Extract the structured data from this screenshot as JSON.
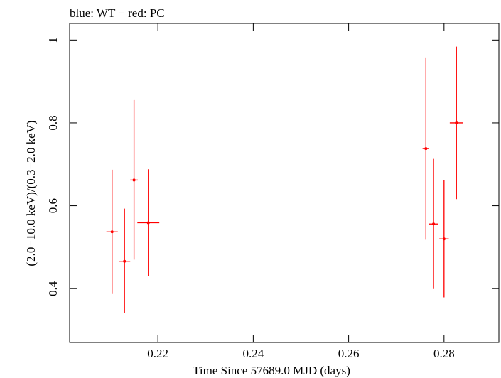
{
  "chart_data": {
    "type": "scatter",
    "title": "blue: WT − red: PC",
    "xlabel": "Time Since 57689.0 MJD (days)",
    "ylabel": "(2.0−10.0 keV)/(0.3−2.0 keV)",
    "xlim": [
      0.2015,
      0.2915
    ],
    "ylim": [
      0.27,
      1.04
    ],
    "xticks": [
      {
        "value": 0.22,
        "label": "0.22"
      },
      {
        "value": 0.24,
        "label": "0.24"
      },
      {
        "value": 0.26,
        "label": "0.26"
      },
      {
        "value": 0.28,
        "label": "0.28"
      }
    ],
    "yticks": [
      {
        "value": 0.4,
        "label": "0.4"
      },
      {
        "value": 0.6,
        "label": "0.6"
      },
      {
        "value": 0.8,
        "label": "0.8"
      },
      {
        "value": 1.0,
        "label": "1"
      }
    ],
    "grid": false,
    "series": [
      {
        "color": "#ff0000",
        "points": [
          {
            "x": 0.2104,
            "xerr": 0.0012,
            "y": 0.537,
            "ylo": 0.387,
            "yhi": 0.687
          },
          {
            "x": 0.213,
            "xerr": 0.0012,
            "y": 0.466,
            "ylo": 0.341,
            "yhi": 0.593
          },
          {
            "x": 0.215,
            "xerr": 0.0008,
            "y": 0.662,
            "ylo": 0.47,
            "yhi": 0.855
          },
          {
            "x": 0.218,
            "xerr": 0.0023,
            "y": 0.559,
            "ylo": 0.43,
            "yhi": 0.688
          },
          {
            "x": 0.2762,
            "xerr": 0.0007,
            "y": 0.738,
            "ylo": 0.518,
            "yhi": 0.958
          },
          {
            "x": 0.2778,
            "xerr": 0.001,
            "y": 0.556,
            "ylo": 0.399,
            "yhi": 0.713
          },
          {
            "x": 0.28,
            "xerr": 0.001,
            "y": 0.52,
            "ylo": 0.379,
            "yhi": 0.661
          },
          {
            "x": 0.2826,
            "xerr": 0.0014,
            "y": 0.8,
            "ylo": 0.616,
            "yhi": 0.984
          }
        ]
      }
    ]
  }
}
